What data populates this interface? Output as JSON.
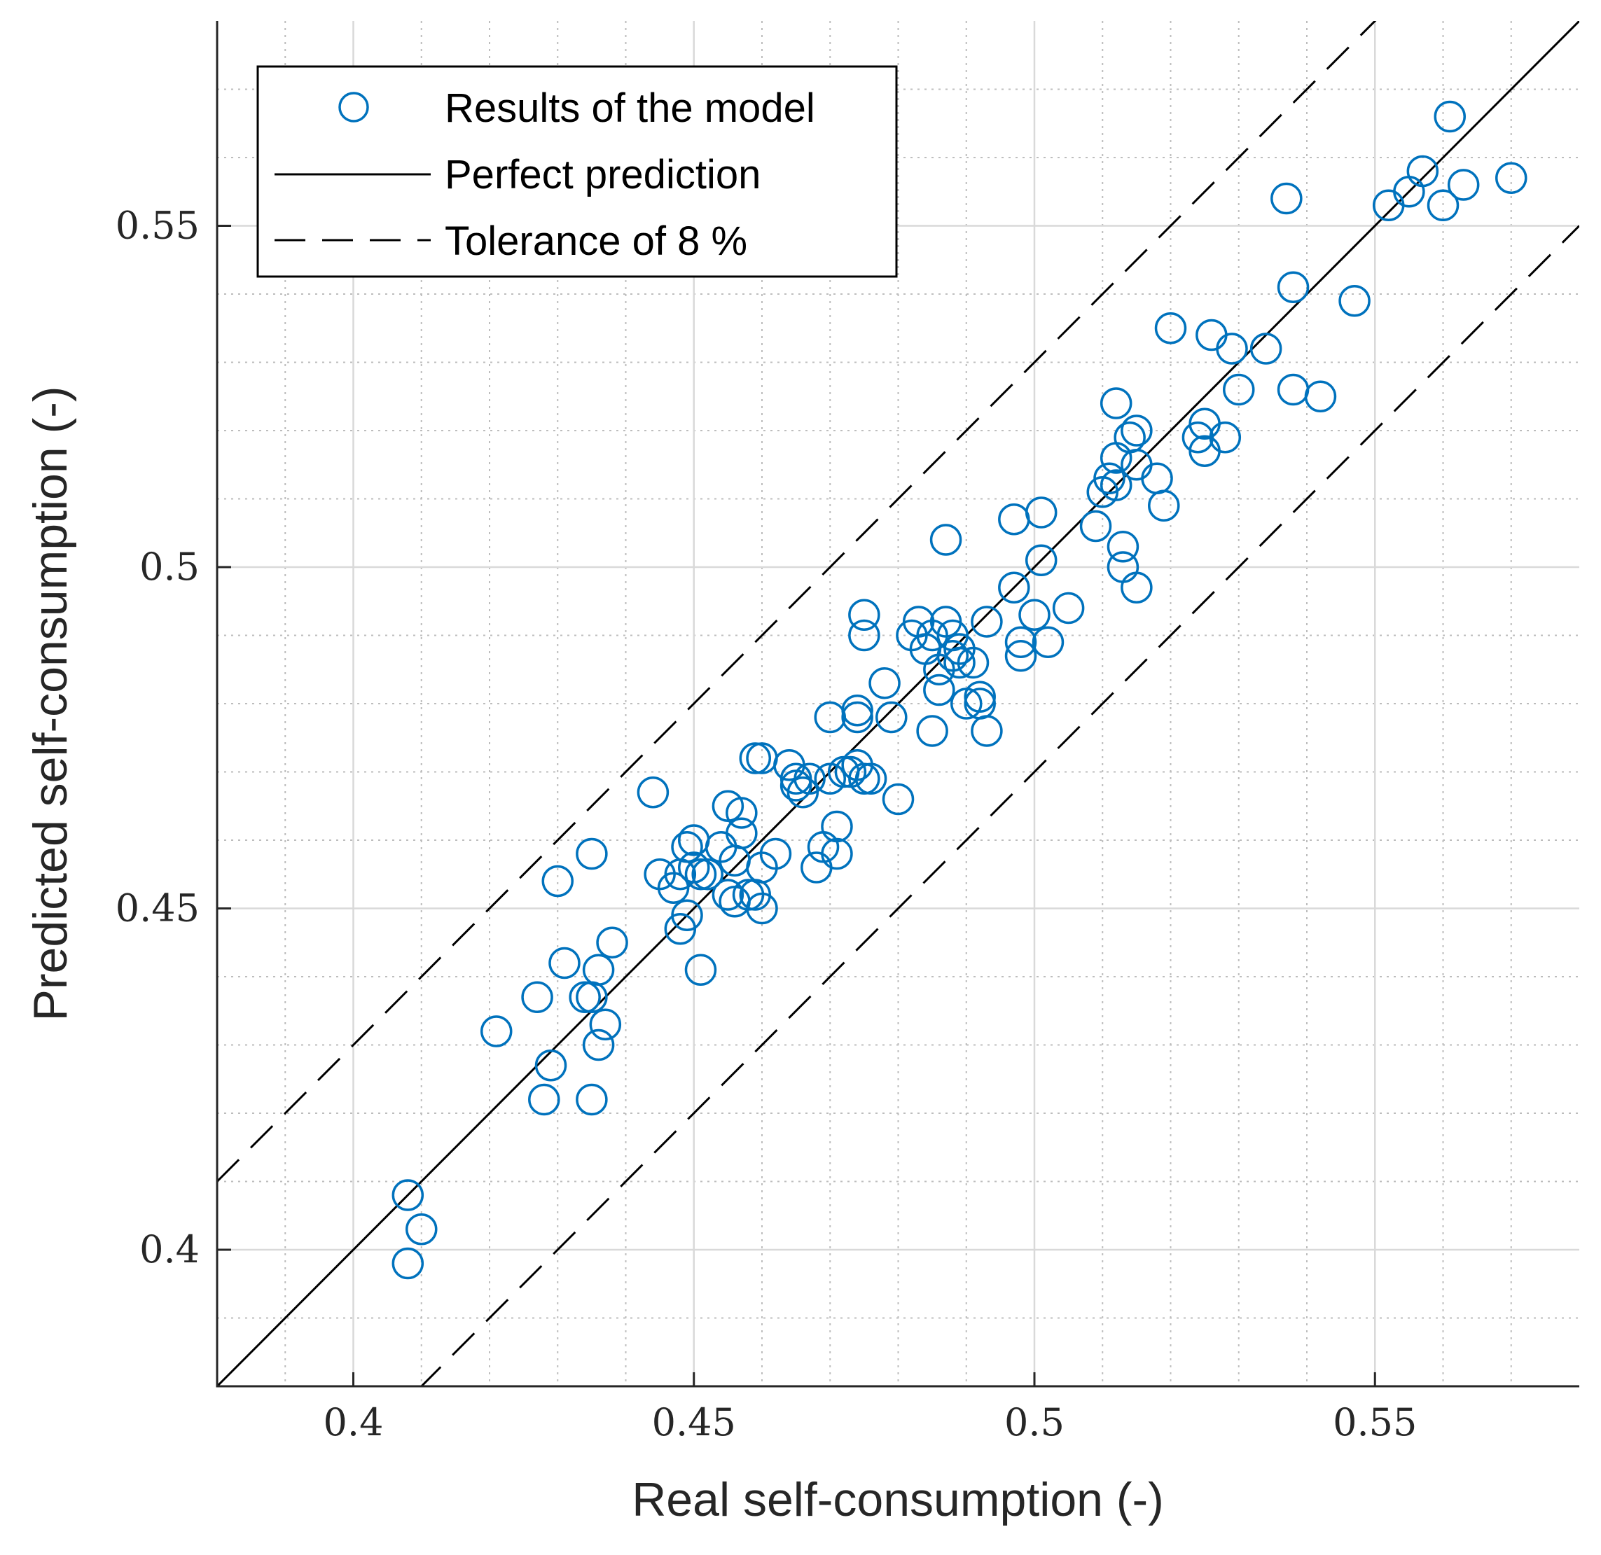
{
  "chart_data": {
    "type": "scatter",
    "title": "",
    "xlabel": "Real self-consumption (-)",
    "ylabel": "Predicted self-consumption (-)",
    "xlim": [
      0.38,
      0.58
    ],
    "ylim": [
      0.38,
      0.58
    ],
    "xticks": [
      0.4,
      0.45,
      0.5,
      0.55
    ],
    "yticks": [
      0.4,
      0.45,
      0.5,
      0.55
    ],
    "xtick_labels": [
      "0.4",
      "0.45",
      "0.5",
      "0.55"
    ],
    "ytick_labels": [
      "0.4",
      "0.45",
      "0.5",
      "0.55"
    ],
    "minor_tick_step": 0.01,
    "grid": true,
    "legend_position": "top-left",
    "series": [
      {
        "name": "Results of the model",
        "kind": "markers",
        "marker": "open-circle",
        "color": "#0072BD",
        "x": [
          0.408,
          0.41,
          0.408,
          0.421,
          0.427,
          0.428,
          0.429,
          0.43,
          0.431,
          0.434,
          0.435,
          0.435,
          0.436,
          0.436,
          0.437,
          0.438,
          0.435,
          0.444,
          0.445,
          0.447,
          0.448,
          0.448,
          0.449,
          0.449,
          0.45,
          0.45,
          0.451,
          0.451,
          0.452,
          0.454,
          0.455,
          0.455,
          0.456,
          0.456,
          0.457,
          0.457,
          0.458,
          0.459,
          0.459,
          0.46,
          0.46,
          0.46,
          0.462,
          0.464,
          0.465,
          0.465,
          0.466,
          0.467,
          0.468,
          0.469,
          0.47,
          0.47,
          0.471,
          0.471,
          0.472,
          0.473,
          0.474,
          0.474,
          0.474,
          0.475,
          0.475,
          0.475,
          0.476,
          0.478,
          0.479,
          0.48,
          0.482,
          0.483,
          0.484,
          0.485,
          0.485,
          0.486,
          0.486,
          0.487,
          0.487,
          0.488,
          0.488,
          0.489,
          0.489,
          0.49,
          0.491,
          0.492,
          0.492,
          0.493,
          0.493,
          0.497,
          0.497,
          0.498,
          0.498,
          0.5,
          0.501,
          0.501,
          0.502,
          0.505,
          0.509,
          0.51,
          0.511,
          0.512,
          0.512,
          0.512,
          0.513,
          0.513,
          0.514,
          0.515,
          0.515,
          0.515,
          0.518,
          0.519,
          0.52,
          0.524,
          0.525,
          0.525,
          0.526,
          0.528,
          0.529,
          0.53,
          0.534,
          0.537,
          0.538,
          0.538,
          0.542,
          0.547,
          0.552,
          0.555,
          0.557,
          0.56,
          0.561,
          0.563,
          0.57
        ],
        "y": [
          0.408,
          0.403,
          0.398,
          0.432,
          0.437,
          0.422,
          0.427,
          0.454,
          0.442,
          0.437,
          0.458,
          0.422,
          0.441,
          0.43,
          0.433,
          0.445,
          0.437,
          0.467,
          0.455,
          0.453,
          0.447,
          0.455,
          0.459,
          0.449,
          0.46,
          0.456,
          0.441,
          0.455,
          0.455,
          0.459,
          0.465,
          0.452,
          0.457,
          0.451,
          0.461,
          0.464,
          0.452,
          0.472,
          0.452,
          0.472,
          0.456,
          0.45,
          0.458,
          0.471,
          0.469,
          0.468,
          0.467,
          0.469,
          0.456,
          0.459,
          0.478,
          0.469,
          0.462,
          0.458,
          0.47,
          0.47,
          0.478,
          0.479,
          0.471,
          0.469,
          0.493,
          0.49,
          0.469,
          0.483,
          0.478,
          0.466,
          0.49,
          0.492,
          0.488,
          0.476,
          0.49,
          0.482,
          0.485,
          0.492,
          0.504,
          0.487,
          0.49,
          0.486,
          0.488,
          0.48,
          0.486,
          0.481,
          0.48,
          0.476,
          0.492,
          0.497,
          0.507,
          0.487,
          0.489,
          0.493,
          0.501,
          0.508,
          0.489,
          0.494,
          0.506,
          0.511,
          0.513,
          0.524,
          0.516,
          0.512,
          0.503,
          0.5,
          0.519,
          0.52,
          0.515,
          0.497,
          0.513,
          0.509,
          0.535,
          0.519,
          0.521,
          0.517,
          0.534,
          0.519,
          0.532,
          0.526,
          0.532,
          0.554,
          0.526,
          0.541,
          0.525,
          0.539,
          0.553,
          0.555,
          0.558,
          0.553,
          0.566,
          0.556,
          0.557
        ]
      },
      {
        "name": "Perfect prediction",
        "kind": "line",
        "style": "solid",
        "color": "#000000",
        "equation": "y = x"
      },
      {
        "name": "Tolerance of 8 %",
        "kind": "line",
        "style": "dashed",
        "color": "#000000",
        "offsets": [
          0.03,
          -0.03
        ]
      }
    ]
  }
}
